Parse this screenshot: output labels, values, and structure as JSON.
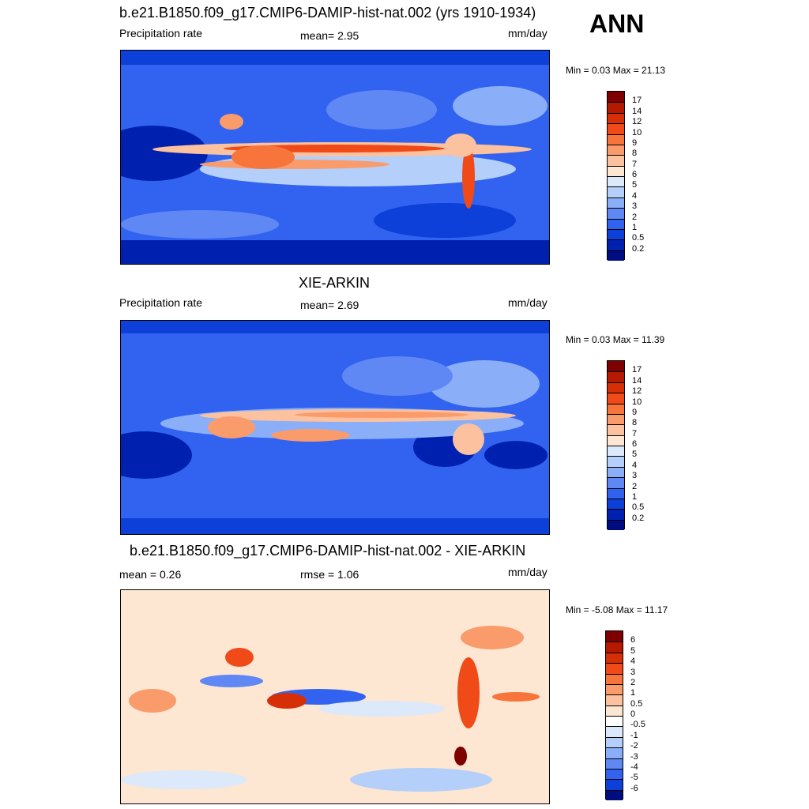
{
  "season": "ANN",
  "panels": [
    {
      "id": "model",
      "title": "b.e21.B1850.f09_g17.CMIP6-DAMIP-hist-nat.002 (yrs 1910-1934)",
      "left_label": "Precipitation rate",
      "center_label": "mean=   2.95",
      "units": "mm/day",
      "minmax": "Min =   0.03 Max =  21.13",
      "colorbar_labels": [
        "17",
        "14",
        "12",
        "10",
        "9",
        "8",
        "7",
        "6",
        "5",
        "4",
        "3",
        "2",
        "1",
        "0.5",
        "0.2"
      ],
      "colors": [
        "#7f0000",
        "#b51a00",
        "#d62f08",
        "#ef4a18",
        "#f7743b",
        "#fa9b6c",
        "#fcc19e",
        "#fde6d2",
        "#dbe9fb",
        "#b4cffa",
        "#8aaff8",
        "#5f88f5",
        "#3163f0",
        "#0d3fd9",
        "#0021b0",
        "#000d80"
      ]
    },
    {
      "id": "obs",
      "title": "XIE-ARKIN",
      "left_label": "Precipitation rate",
      "center_label": "mean=   2.69",
      "units": "mm/day",
      "minmax": "Min =   0.03 Max =  11.39",
      "colorbar_labels": [
        "17",
        "14",
        "12",
        "10",
        "9",
        "8",
        "7",
        "6",
        "5",
        "4",
        "3",
        "2",
        "1",
        "0.5",
        "0.2"
      ],
      "colors": [
        "#7f0000",
        "#b51a00",
        "#d62f08",
        "#ef4a18",
        "#f7743b",
        "#fa9b6c",
        "#fcc19e",
        "#fde6d2",
        "#dbe9fb",
        "#b4cffa",
        "#8aaff8",
        "#5f88f5",
        "#3163f0",
        "#0d3fd9",
        "#0021b0",
        "#000d80"
      ]
    },
    {
      "id": "diff",
      "title": "b.e21.B1850.f09_g17.CMIP6-DAMIP-hist-nat.002 - XIE-ARKIN",
      "left_label": "mean =   0.26",
      "center_label": "rmse =   1.06",
      "units": "mm/day",
      "minmax": "Min =  -5.08 Max =  11.17",
      "colorbar_labels": [
        "6",
        "5",
        "4",
        "3",
        "2",
        "1",
        "0.5",
        "0",
        "-0.5",
        "-1",
        "-2",
        "-3",
        "-4",
        "-5",
        "-6"
      ],
      "colors": [
        "#7f0000",
        "#b51a00",
        "#d62f08",
        "#ef4a18",
        "#f7743b",
        "#fa9b6c",
        "#fcc19e",
        "#fde6d2",
        "#ffffff",
        "#dbe9fb",
        "#b4cffa",
        "#8aaff8",
        "#5f88f5",
        "#3163f0",
        "#0d3fd9",
        "#000d80"
      ]
    }
  ],
  "chart_data": [
    {
      "type": "heatmap",
      "title": "b.e21.B1850.f09_g17.CMIP6-DAMIP-hist-nat.002 (yrs 1910-1934)",
      "variable": "Precipitation rate",
      "units": "mm/day",
      "mean": 2.95,
      "min": 0.03,
      "max": 21.13,
      "levels": [
        0.2,
        0.5,
        1,
        2,
        3,
        4,
        5,
        6,
        7,
        8,
        9,
        10,
        12,
        14,
        17
      ]
    },
    {
      "type": "heatmap",
      "title": "XIE-ARKIN",
      "variable": "Precipitation rate",
      "units": "mm/day",
      "mean": 2.69,
      "min": 0.03,
      "max": 11.39,
      "levels": [
        0.2,
        0.5,
        1,
        2,
        3,
        4,
        5,
        6,
        7,
        8,
        9,
        10,
        12,
        14,
        17
      ]
    },
    {
      "type": "heatmap",
      "title": "b.e21.B1850.f09_g17.CMIP6-DAMIP-hist-nat.002 - XIE-ARKIN",
      "units": "mm/day",
      "mean": 0.26,
      "rmse": 1.06,
      "min": -5.08,
      "max": 11.17,
      "levels": [
        -6,
        -5,
        -4,
        -3,
        -2,
        -1,
        -0.5,
        0,
        0.5,
        1,
        2,
        3,
        4,
        5,
        6
      ]
    }
  ]
}
